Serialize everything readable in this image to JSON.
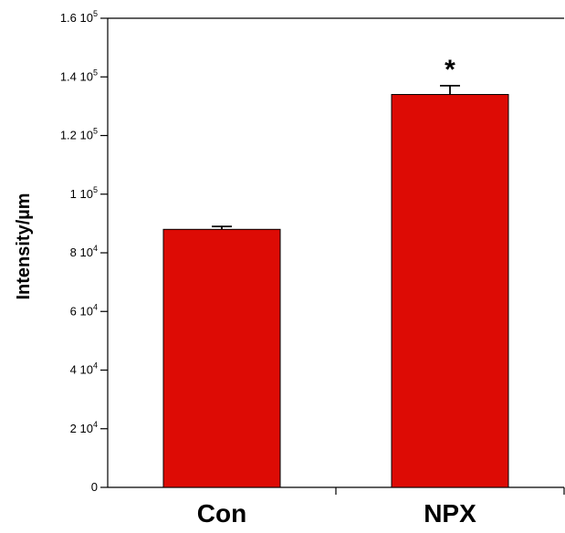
{
  "chart_data": {
    "type": "bar",
    "title": "",
    "ylabel": "Intensity/µm",
    "xlabel": "",
    "categories": [
      "Con",
      "NPX"
    ],
    "values": [
      88000,
      134000
    ],
    "errors": [
      1000,
      3000
    ],
    "annotations": [
      "",
      "*"
    ],
    "ylim": [
      0,
      160000
    ],
    "yticks": [
      {
        "value": 0,
        "mant": "0",
        "exp": ""
      },
      {
        "value": 20000,
        "mant": "2 10",
        "exp": "4"
      },
      {
        "value": 40000,
        "mant": "4 10",
        "exp": "4"
      },
      {
        "value": 60000,
        "mant": "6 10",
        "exp": "4"
      },
      {
        "value": 80000,
        "mant": "8 10",
        "exp": "4"
      },
      {
        "value": 100000,
        "mant": "1 10",
        "exp": "5"
      },
      {
        "value": 120000,
        "mant": "1.2 10",
        "exp": "5"
      },
      {
        "value": 140000,
        "mant": "1.4 10",
        "exp": "5"
      },
      {
        "value": 160000,
        "mant": "1.6 10",
        "exp": "5"
      }
    ],
    "bar_color": "#dd0b05",
    "grid": false
  }
}
